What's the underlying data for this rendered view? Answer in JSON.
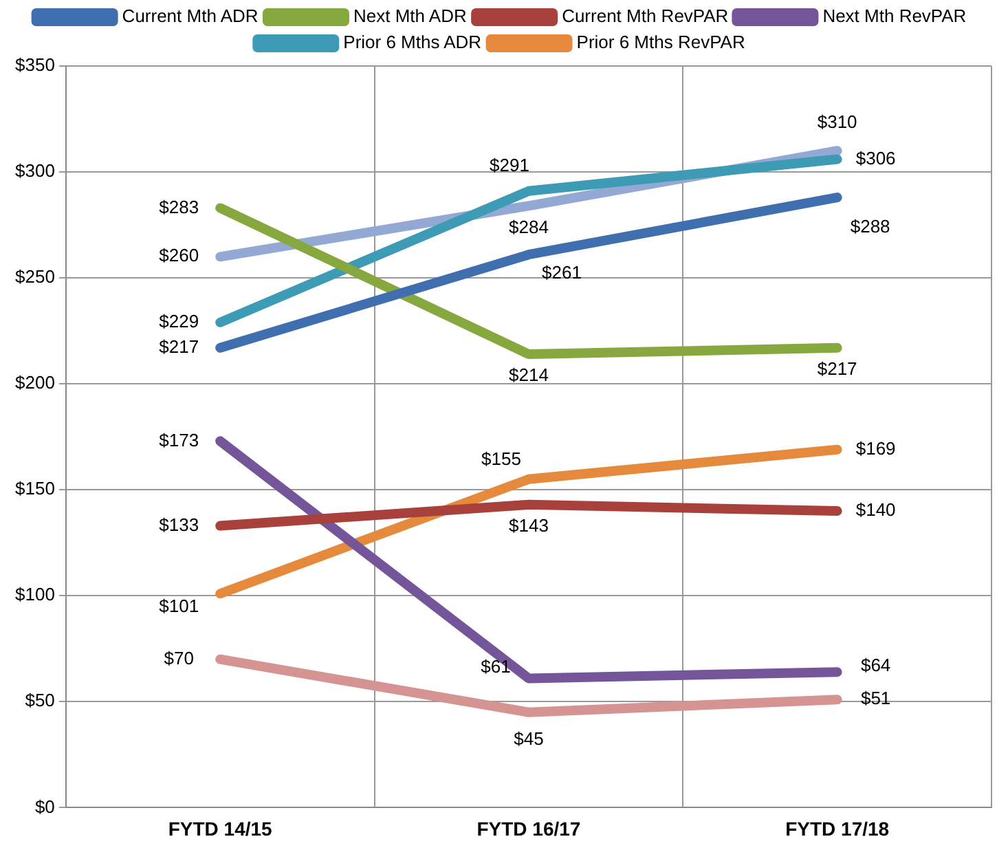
{
  "chart_data": {
    "type": "line",
    "categories": [
      "FYTD 14/15",
      "FYTD 16/17",
      "FYTD 17/18"
    ],
    "ylim": [
      0,
      350
    ],
    "yticks": [
      {
        "value": 0,
        "label": "$0"
      },
      {
        "value": 50,
        "label": "$50"
      },
      {
        "value": 100,
        "label": "$100"
      },
      {
        "value": 150,
        "label": "$150"
      },
      {
        "value": 200,
        "label": "$200"
      },
      {
        "value": 250,
        "label": "$250"
      },
      {
        "value": 300,
        "label": "$300"
      },
      {
        "value": 350,
        "label": "$350"
      }
    ],
    "grid": true,
    "legend": "top",
    "marker": "none",
    "series": [
      {
        "name": "Current Mth ADR",
        "color": "#3f6fae",
        "values": [
          217,
          261,
          288
        ],
        "value_labels": [
          "$217",
          "$261",
          "$288"
        ]
      },
      {
        "name": "Next Mth ADR",
        "color": "#86a83e",
        "values": [
          283,
          214,
          217
        ],
        "value_labels": [
          "$283",
          "$214",
          "$217"
        ]
      },
      {
        "name": "Current Mth RevPAR",
        "color": "#a8403c",
        "values": [
          133,
          143,
          140
        ],
        "value_labels": [
          "$133",
          "$143",
          "$140"
        ]
      },
      {
        "name": "Next Mth RevPAR",
        "color": "#74559a",
        "values": [
          173,
          61,
          64
        ],
        "value_labels": [
          "$173",
          "$61",
          "$64"
        ]
      },
      {
        "name": "Prior 6 Mths ADR",
        "color": "#3d9bb5",
        "values": [
          229,
          291,
          306
        ],
        "value_labels": [
          "$229",
          "$291",
          "$306"
        ]
      },
      {
        "name": "Prior 6 Mths RevPAR",
        "color": "#e58a3c",
        "values": [
          101,
          155,
          169
        ],
        "value_labels": [
          "$101",
          "$155",
          "$169"
        ]
      },
      {
        "color": "#93a9d4",
        "values": [
          260,
          284,
          310
        ],
        "value_labels": [
          "$260",
          "$284",
          "$310"
        ]
      },
      {
        "color": "#d59491",
        "values": [
          70,
          45,
          51
        ],
        "value_labels": [
          "$70",
          "$45",
          "$51"
        ]
      }
    ]
  }
}
